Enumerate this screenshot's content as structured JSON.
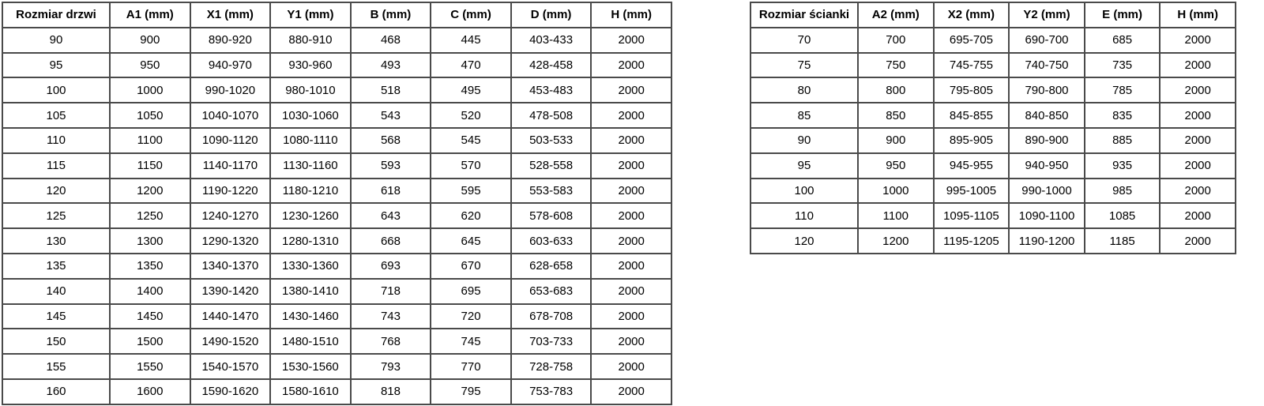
{
  "document": {
    "background_color": "#ffffff",
    "text_color": "#000000",
    "border_color": "#4a4a4a"
  },
  "tables": [
    {
      "name": "door-size-table",
      "headers": [
        "Rozmiar drzwi",
        "A1 (mm)",
        "X1 (mm)",
        "Y1 (mm)",
        "B (mm)",
        "C (mm)",
        "D (mm)",
        "H (mm)"
      ],
      "rows": [
        [
          "90",
          "900",
          "890-920",
          "880-910",
          "468",
          "445",
          "403-433",
          "2000"
        ],
        [
          "95",
          "950",
          "940-970",
          "930-960",
          "493",
          "470",
          "428-458",
          "2000"
        ],
        [
          "100",
          "1000",
          "990-1020",
          "980-1010",
          "518",
          "495",
          "453-483",
          "2000"
        ],
        [
          "105",
          "1050",
          "1040-1070",
          "1030-1060",
          "543",
          "520",
          "478-508",
          "2000"
        ],
        [
          "110",
          "1100",
          "1090-1120",
          "1080-1110",
          "568",
          "545",
          "503-533",
          "2000"
        ],
        [
          "115",
          "1150",
          "1140-1170",
          "1130-1160",
          "593",
          "570",
          "528-558",
          "2000"
        ],
        [
          "120",
          "1200",
          "1190-1220",
          "1180-1210",
          "618",
          "595",
          "553-583",
          "2000"
        ],
        [
          "125",
          "1250",
          "1240-1270",
          "1230-1260",
          "643",
          "620",
          "578-608",
          "2000"
        ],
        [
          "130",
          "1300",
          "1290-1320",
          "1280-1310",
          "668",
          "645",
          "603-633",
          "2000"
        ],
        [
          "135",
          "1350",
          "1340-1370",
          "1330-1360",
          "693",
          "670",
          "628-658",
          "2000"
        ],
        [
          "140",
          "1400",
          "1390-1420",
          "1380-1410",
          "718",
          "695",
          "653-683",
          "2000"
        ],
        [
          "145",
          "1450",
          "1440-1470",
          "1430-1460",
          "743",
          "720",
          "678-708",
          "2000"
        ],
        [
          "150",
          "1500",
          "1490-1520",
          "1480-1510",
          "768",
          "745",
          "703-733",
          "2000"
        ],
        [
          "155",
          "1550",
          "1540-1570",
          "1530-1560",
          "793",
          "770",
          "728-758",
          "2000"
        ],
        [
          "160",
          "1600",
          "1590-1620",
          "1580-1610",
          "818",
          "795",
          "753-783",
          "2000"
        ]
      ]
    },
    {
      "name": "wall-panel-size-table",
      "headers": [
        "Rozmiar ścianki",
        "A2 (mm)",
        "X2 (mm)",
        "Y2 (mm)",
        "E (mm)",
        "H (mm)"
      ],
      "rows": [
        [
          "70",
          "700",
          "695-705",
          "690-700",
          "685",
          "2000"
        ],
        [
          "75",
          "750",
          "745-755",
          "740-750",
          "735",
          "2000"
        ],
        [
          "80",
          "800",
          "795-805",
          "790-800",
          "785",
          "2000"
        ],
        [
          "85",
          "850",
          "845-855",
          "840-850",
          "835",
          "2000"
        ],
        [
          "90",
          "900",
          "895-905",
          "890-900",
          "885",
          "2000"
        ],
        [
          "95",
          "950",
          "945-955",
          "940-950",
          "935",
          "2000"
        ],
        [
          "100",
          "1000",
          "995-1005",
          "990-1000",
          "985",
          "2000"
        ],
        [
          "110",
          "1100",
          "1095-1105",
          "1090-1100",
          "1085",
          "2000"
        ],
        [
          "120",
          "1200",
          "1195-1205",
          "1190-1200",
          "1185",
          "2000"
        ]
      ]
    }
  ]
}
